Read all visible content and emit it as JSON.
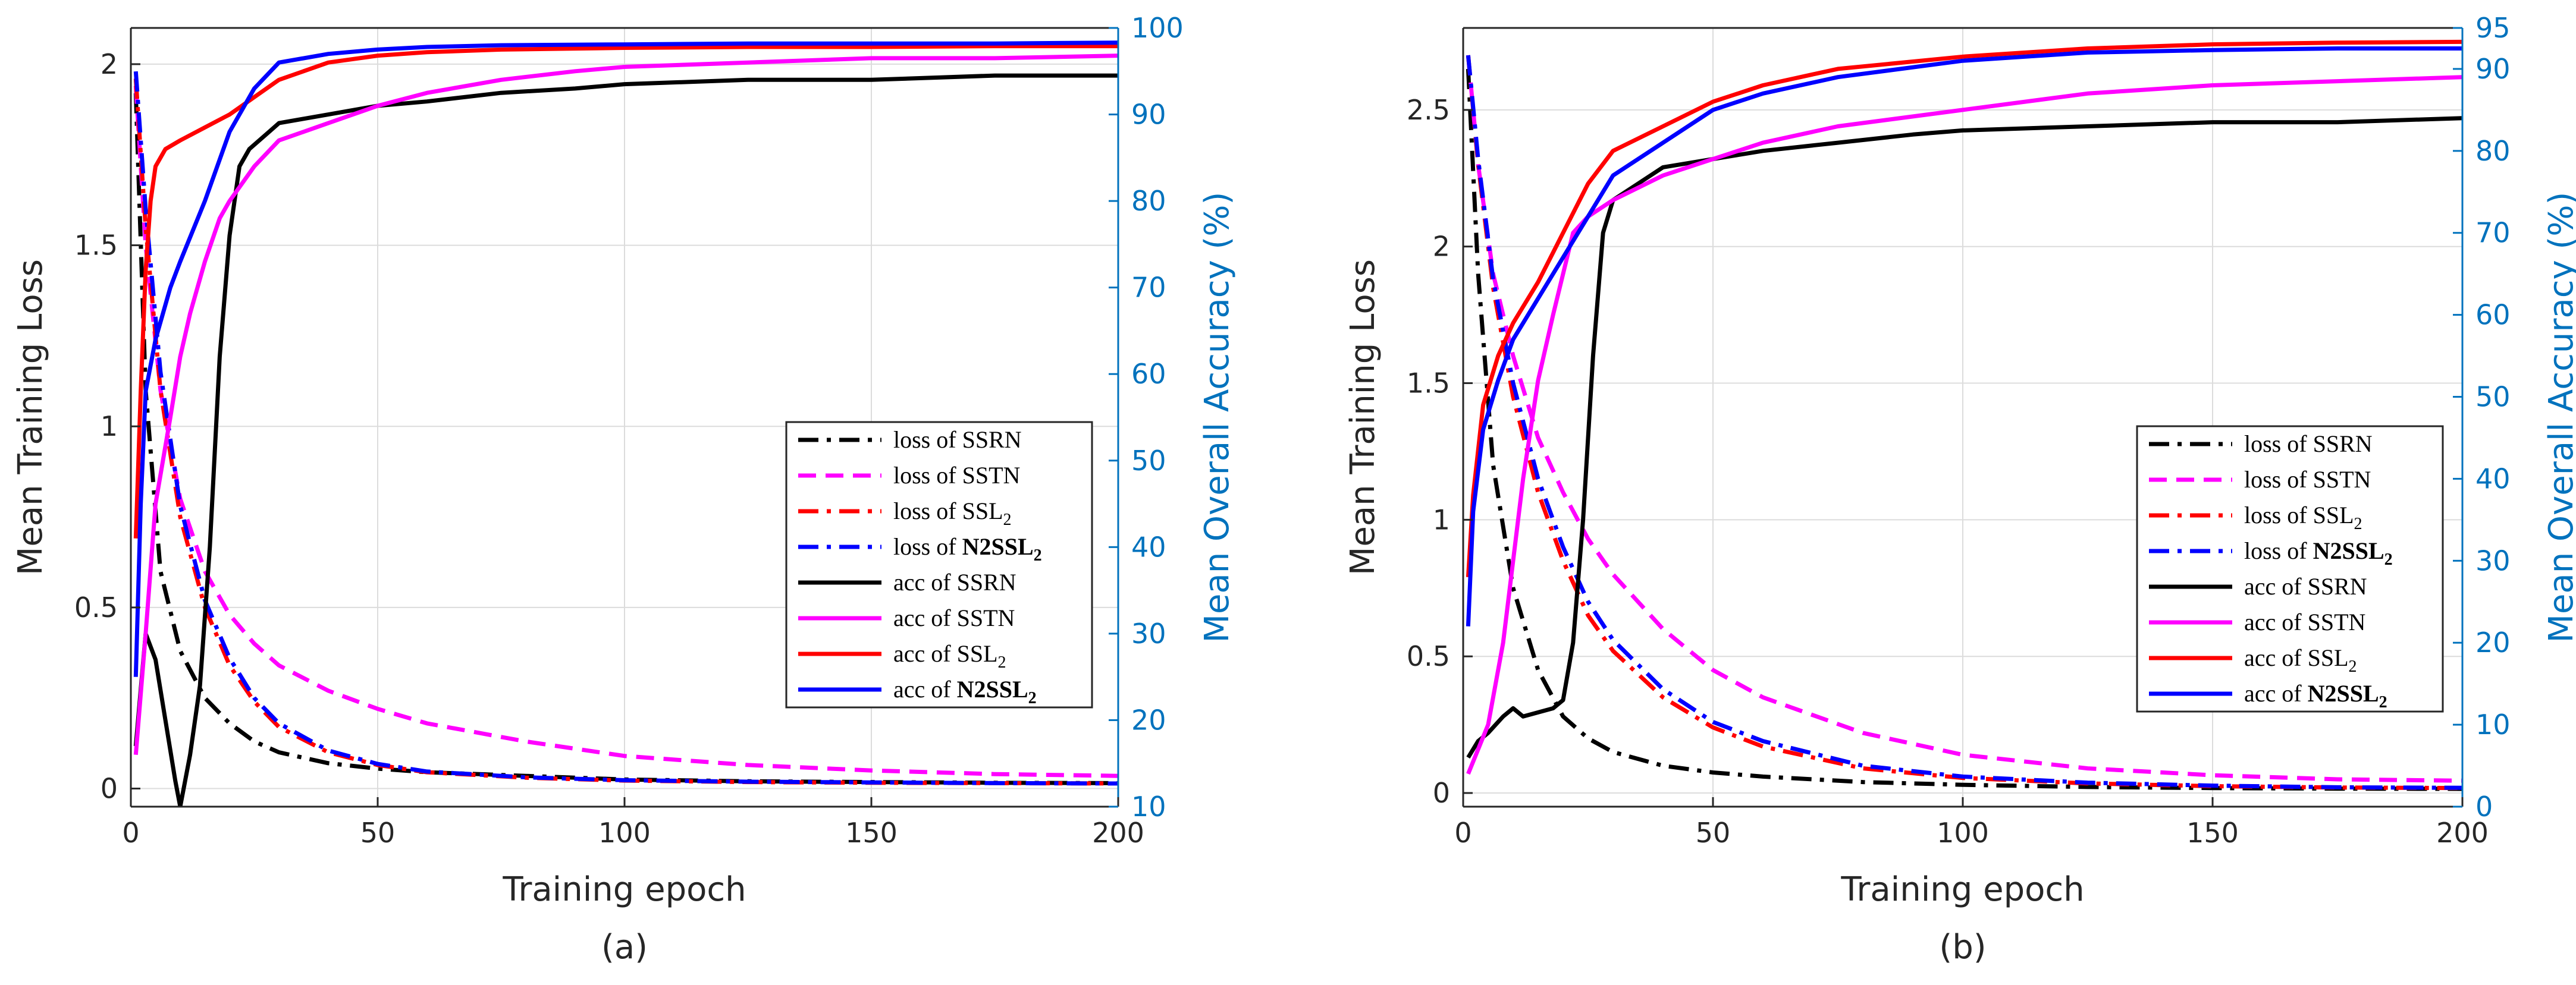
{
  "chart_data": [
    {
      "type": "line",
      "panel": "(a)",
      "xlabel": "Training epoch",
      "ylabel_left": "Mean Training Loss",
      "ylabel_right": "Mean Overall Accuracy (%)",
      "xlim": [
        0,
        200
      ],
      "ylim_left": [
        -0.05,
        2.1
      ],
      "ylim_right": [
        10,
        100
      ],
      "xticks": [
        "0",
        "50",
        "100",
        "150",
        "200"
      ],
      "yticks_left": [
        "0",
        "0.5",
        "1",
        "1.5",
        "2"
      ],
      "yticks_right": [
        "10",
        "20",
        "30",
        "40",
        "50",
        "60",
        "70",
        "80",
        "90",
        "100"
      ],
      "grid": true,
      "legend_position": "center-right",
      "series": [
        {
          "name": "loss of SSRN",
          "label_prefix": "loss of ",
          "label_main": "SSRN",
          "label_bold": false,
          "label_sub": "",
          "axis": "left",
          "color": "#000000",
          "style": "dashdot",
          "x": [
            1,
            3,
            6,
            10,
            15,
            20,
            25,
            30,
            40,
            50,
            60,
            80,
            100,
            125,
            150,
            175,
            200
          ],
          "y": [
            1.92,
            1.1,
            0.6,
            0.38,
            0.25,
            0.18,
            0.13,
            0.1,
            0.07,
            0.055,
            0.045,
            0.035,
            0.025,
            0.02,
            0.018,
            0.016,
            0.015
          ]
        },
        {
          "name": "loss of SSTN",
          "label_prefix": "loss of ",
          "label_main": "SSTN",
          "label_bold": false,
          "label_sub": "",
          "axis": "left",
          "color": "#FF00FF",
          "style": "dashed",
          "x": [
            1,
            3,
            6,
            10,
            15,
            20,
            25,
            30,
            40,
            50,
            60,
            80,
            100,
            125,
            150,
            175,
            200
          ],
          "y": [
            1.94,
            1.5,
            1.1,
            0.8,
            0.6,
            0.48,
            0.4,
            0.34,
            0.27,
            0.22,
            0.18,
            0.13,
            0.09,
            0.065,
            0.05,
            0.04,
            0.035
          ]
        },
        {
          "name": "loss of SSL2",
          "label_prefix": "loss of ",
          "label_main": "SSL",
          "label_bold": false,
          "label_sub": "2",
          "axis": "left",
          "color": "#FF0000",
          "style": "dashdot",
          "x": [
            1,
            3,
            6,
            10,
            15,
            20,
            25,
            30,
            40,
            50,
            60,
            80,
            100,
            125,
            150,
            175,
            200
          ],
          "y": [
            1.96,
            1.55,
            1.1,
            0.75,
            0.5,
            0.34,
            0.24,
            0.17,
            0.1,
            0.065,
            0.045,
            0.03,
            0.022,
            0.018,
            0.016,
            0.015,
            0.014
          ]
        },
        {
          "name": "loss of N2SSL2",
          "label_prefix": "loss of ",
          "label_main": "N2SSL",
          "label_bold": true,
          "label_sub": "2",
          "axis": "left",
          "color": "#0000FF",
          "style": "dashdot",
          "x": [
            1,
            3,
            6,
            10,
            15,
            20,
            25,
            30,
            40,
            50,
            60,
            80,
            100,
            125,
            150,
            175,
            200
          ],
          "y": [
            1.98,
            1.6,
            1.15,
            0.78,
            0.52,
            0.36,
            0.25,
            0.18,
            0.105,
            0.068,
            0.047,
            0.031,
            0.023,
            0.019,
            0.017,
            0.015,
            0.014
          ]
        },
        {
          "name": "acc of SSRN",
          "label_prefix": "acc of ",
          "label_main": "SSRN",
          "label_bold": false,
          "label_sub": "",
          "axis": "right",
          "color": "#000000",
          "style": "solid",
          "x": [
            1,
            3,
            5,
            7,
            9,
            10,
            12,
            14,
            16,
            18,
            20,
            22,
            24,
            26,
            28,
            30,
            35,
            40,
            50,
            60,
            75,
            90,
            100,
            125,
            150,
            175,
            200
          ],
          "y": [
            17,
            30,
            27,
            20,
            13,
            10,
            16,
            24,
            40,
            62,
            76,
            84,
            86,
            87,
            88,
            89,
            89.5,
            90,
            91,
            91.5,
            92.5,
            93,
            93.5,
            94,
            94,
            94.5,
            94.5
          ]
        },
        {
          "name": "acc of SSTN",
          "label_prefix": "acc of ",
          "label_main": "SSTN",
          "label_bold": false,
          "label_sub": "",
          "axis": "right",
          "color": "#FF00FF",
          "style": "solid",
          "x": [
            1,
            3,
            5,
            8,
            10,
            12,
            15,
            18,
            20,
            25,
            30,
            40,
            50,
            60,
            75,
            90,
            100,
            125,
            150,
            175,
            200
          ],
          "y": [
            16,
            30,
            45,
            55,
            62,
            67,
            73,
            78,
            80,
            84,
            87,
            89,
            91,
            92.5,
            94,
            95,
            95.5,
            96,
            96.5,
            96.5,
            96.8
          ]
        },
        {
          "name": "acc of SSL2",
          "label_prefix": "acc of ",
          "label_main": "SSL",
          "label_bold": false,
          "label_sub": "2",
          "axis": "right",
          "color": "#FF0000",
          "style": "solid",
          "x": [
            1,
            2,
            3,
            4,
            5,
            7,
            10,
            15,
            20,
            25,
            30,
            40,
            50,
            60,
            75,
            100,
            125,
            150,
            175,
            200
          ],
          "y": [
            41,
            58,
            72,
            80,
            84,
            86,
            87,
            88.5,
            90,
            92,
            94,
            96,
            96.8,
            97.2,
            97.5,
            97.7,
            97.8,
            97.8,
            97.9,
            97.9
          ]
        },
        {
          "name": "acc of N2SSL2",
          "label_prefix": "acc of ",
          "label_main": "N2SSL",
          "label_bold": true,
          "label_sub": "2",
          "axis": "right",
          "color": "#0000FF",
          "style": "solid",
          "x": [
            1,
            2,
            3,
            5,
            8,
            10,
            15,
            20,
            25,
            30,
            40,
            50,
            60,
            75,
            100,
            125,
            150,
            175,
            200
          ],
          "y": [
            25,
            45,
            58,
            64,
            70,
            73,
            80,
            88,
            93,
            96,
            97,
            97.5,
            97.8,
            98,
            98.1,
            98.2,
            98.2,
            98.2,
            98.3
          ]
        }
      ]
    },
    {
      "type": "line",
      "panel": "(b)",
      "xlabel": "Training epoch",
      "ylabel_left": "Mean Training Loss",
      "ylabel_right": "Mean Overall Accuracy (%)",
      "xlim": [
        0,
        200
      ],
      "ylim_left": [
        -0.05,
        2.8
      ],
      "ylim_right": [
        0,
        95
      ],
      "xticks": [
        "0",
        "50",
        "100",
        "150",
        "200"
      ],
      "yticks_left": [
        "0",
        "0.5",
        "1",
        "1.5",
        "2",
        "2.5"
      ],
      "yticks_right": [
        "0",
        "10",
        "20",
        "30",
        "40",
        "50",
        "60",
        "70",
        "80",
        "90",
        "95"
      ],
      "grid": true,
      "legend_position": "center-right",
      "series": [
        {
          "name": "loss of SSRN",
          "label_prefix": "loss of ",
          "label_main": "SSRN",
          "label_bold": false,
          "label_sub": "",
          "axis": "left",
          "color": "#000000",
          "style": "dashdot",
          "x": [
            1,
            3,
            6,
            10,
            15,
            20,
            25,
            30,
            40,
            50,
            60,
            80,
            100,
            125,
            150,
            175,
            200
          ],
          "y": [
            2.65,
            1.9,
            1.2,
            0.75,
            0.45,
            0.28,
            0.2,
            0.15,
            0.1,
            0.075,
            0.06,
            0.04,
            0.03,
            0.022,
            0.018,
            0.016,
            0.015
          ]
        },
        {
          "name": "loss of SSTN",
          "label_prefix": "loss of ",
          "label_main": "SSTN",
          "label_bold": false,
          "label_sub": "",
          "axis": "left",
          "color": "#FF00FF",
          "style": "dashed",
          "x": [
            1,
            3,
            6,
            10,
            15,
            20,
            25,
            30,
            40,
            50,
            60,
            80,
            100,
            125,
            150,
            175,
            200
          ],
          "y": [
            2.7,
            2.3,
            1.9,
            1.6,
            1.3,
            1.1,
            0.93,
            0.8,
            0.6,
            0.45,
            0.35,
            0.22,
            0.14,
            0.09,
            0.065,
            0.05,
            0.045
          ]
        },
        {
          "name": "loss of SSL2",
          "label_prefix": "loss of ",
          "label_main": "SSL",
          "label_bold": false,
          "label_sub": "2",
          "axis": "left",
          "color": "#FF0000",
          "style": "dashdot",
          "x": [
            1,
            3,
            6,
            10,
            15,
            20,
            25,
            30,
            40,
            50,
            60,
            80,
            100,
            125,
            150,
            175,
            200
          ],
          "y": [
            2.7,
            2.3,
            1.85,
            1.45,
            1.1,
            0.85,
            0.65,
            0.52,
            0.35,
            0.24,
            0.17,
            0.09,
            0.055,
            0.035,
            0.025,
            0.02,
            0.018
          ]
        },
        {
          "name": "loss of N2SSL2",
          "label_prefix": "loss of ",
          "label_main": "N2SSL",
          "label_bold": true,
          "label_sub": "2",
          "axis": "left",
          "color": "#0000FF",
          "style": "dashdot",
          "x": [
            1,
            3,
            6,
            10,
            15,
            20,
            25,
            30,
            40,
            50,
            60,
            80,
            100,
            125,
            150,
            175,
            200
          ],
          "y": [
            2.7,
            2.32,
            1.88,
            1.5,
            1.15,
            0.9,
            0.7,
            0.56,
            0.38,
            0.26,
            0.19,
            0.1,
            0.06,
            0.038,
            0.027,
            0.021,
            0.019
          ]
        },
        {
          "name": "acc of SSRN",
          "label_prefix": "acc of ",
          "label_main": "SSRN",
          "label_bold": false,
          "label_sub": "",
          "axis": "right",
          "color": "#000000",
          "style": "solid",
          "x": [
            1,
            3,
            5,
            8,
            10,
            12,
            15,
            18,
            20,
            22,
            24,
            26,
            28,
            30,
            35,
            40,
            50,
            60,
            75,
            90,
            100,
            125,
            150,
            175,
            200
          ],
          "y": [
            6,
            8,
            9,
            11,
            12,
            11,
            11.5,
            12,
            13,
            20,
            35,
            55,
            70,
            74,
            76,
            78,
            79,
            80,
            81,
            82,
            82.5,
            83,
            83.5,
            83.5,
            84
          ]
        },
        {
          "name": "acc of SSTN",
          "label_prefix": "acc of ",
          "label_main": "SSTN",
          "label_bold": false,
          "label_sub": "",
          "axis": "right",
          "color": "#FF00FF",
          "style": "solid",
          "x": [
            1,
            3,
            5,
            8,
            10,
            12,
            15,
            18,
            20,
            22,
            25,
            30,
            40,
            50,
            60,
            75,
            100,
            125,
            150,
            175,
            200
          ],
          "y": [
            4,
            7,
            10,
            20,
            30,
            40,
            52,
            60,
            65,
            70,
            72,
            74,
            77,
            79,
            81,
            83,
            85,
            87,
            88,
            88.5,
            89
          ]
        },
        {
          "name": "acc of SSL2",
          "label_prefix": "acc of ",
          "label_main": "SSL",
          "label_bold": false,
          "label_sub": "2",
          "axis": "right",
          "color": "#FF0000",
          "style": "solid",
          "x": [
            1,
            2,
            4,
            7,
            10,
            15,
            20,
            25,
            30,
            40,
            50,
            60,
            75,
            100,
            125,
            150,
            175,
            200
          ],
          "y": [
            28,
            38,
            49,
            55,
            59,
            64,
            70,
            76,
            80,
            83,
            86,
            88,
            90,
            91.5,
            92.5,
            93,
            93.2,
            93.3
          ]
        },
        {
          "name": "acc of N2SSL2",
          "label_prefix": "acc of ",
          "label_main": "N2SSL",
          "label_bold": true,
          "label_sub": "2",
          "axis": "right",
          "color": "#0000FF",
          "style": "solid",
          "x": [
            1,
            2,
            4,
            7,
            10,
            15,
            20,
            25,
            30,
            40,
            50,
            60,
            75,
            100,
            125,
            150,
            175,
            200
          ],
          "y": [
            22,
            36,
            46,
            52,
            57,
            62,
            67,
            72,
            77,
            81,
            85,
            87,
            89,
            91,
            92,
            92.3,
            92.5,
            92.5
          ]
        }
      ]
    }
  ]
}
